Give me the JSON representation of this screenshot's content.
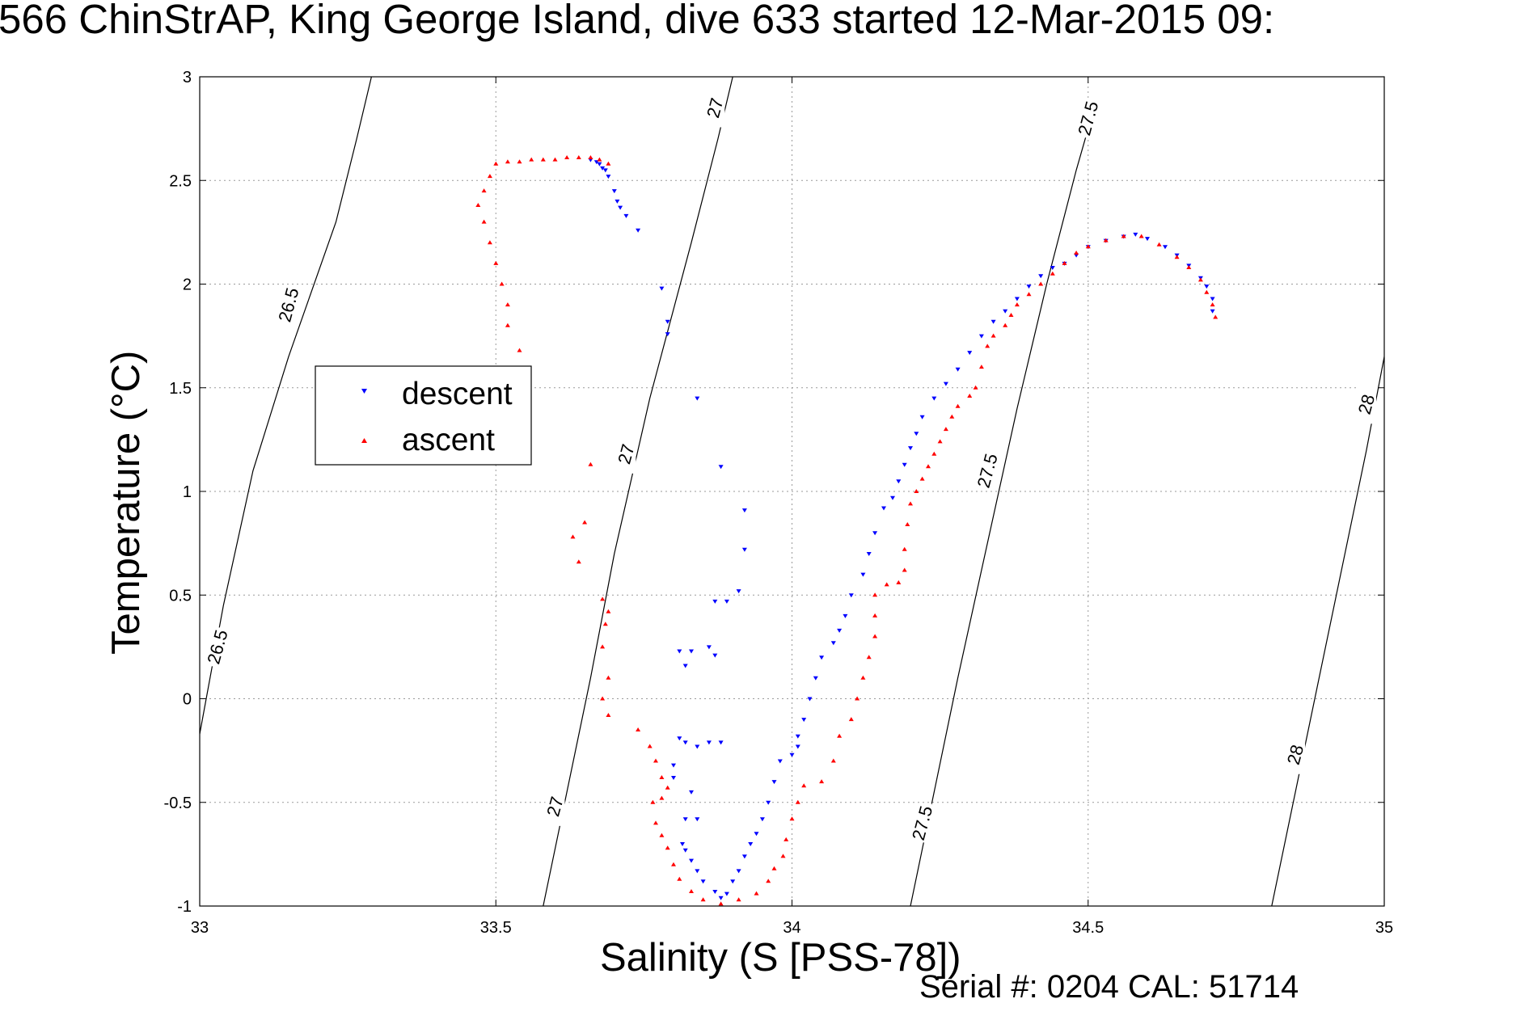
{
  "chart_data": {
    "type": "scatter",
    "title": "566 ChinStrAP, King George Island, dive 633 started 12-Mar-2015 09:",
    "xlabel": "Salinity (S [PSS-78])",
    "ylabel": "Temperature (°C)",
    "xlim": [
      33,
      35
    ],
    "ylim": [
      -1,
      3
    ],
    "xticks": [
      "33",
      "33.5",
      "34",
      "34.5",
      "35"
    ],
    "yticks": [
      "-1",
      "-0.5",
      "0",
      "0.5",
      "1",
      "1.5",
      "2",
      "2.5",
      "3"
    ],
    "grid": true,
    "legend_position": "left",
    "footer": "Serial #: 0204  CAL: 51714",
    "density_contours": [
      {
        "label": "26.5",
        "points": [
          [
            33.0,
            -0.17
          ],
          [
            33.04,
            0.45
          ],
          [
            33.09,
            1.1
          ],
          [
            33.15,
            1.65
          ],
          [
            33.23,
            2.3
          ],
          [
            33.265,
            2.7
          ],
          [
            33.29,
            3.0
          ]
        ]
      },
      {
        "label": "27",
        "points": [
          [
            33.58,
            -1.0
          ],
          [
            33.62,
            -0.45
          ],
          [
            33.66,
            0.1
          ],
          [
            33.7,
            0.7
          ],
          [
            33.76,
            1.45
          ],
          [
            33.83,
            2.2
          ],
          [
            33.875,
            2.7
          ],
          [
            33.9,
            3.0
          ]
        ]
      },
      {
        "label": "27.5",
        "points": [
          [
            34.2,
            -1.0
          ],
          [
            34.24,
            -0.45
          ],
          [
            34.28,
            0.1
          ],
          [
            34.33,
            0.75
          ],
          [
            34.38,
            1.4
          ],
          [
            34.43,
            2.0
          ],
          [
            34.48,
            2.55
          ],
          [
            34.5,
            2.75
          ]
        ]
      },
      {
        "label": "28",
        "points": [
          [
            34.81,
            -1.0
          ],
          [
            34.85,
            -0.45
          ],
          [
            34.89,
            0.1
          ],
          [
            34.93,
            0.65
          ],
          [
            34.97,
            1.2
          ],
          [
            35.0,
            1.65
          ]
        ]
      }
    ],
    "contour_label_positions": [
      {
        "label": "26.5",
        "at": [
          33.15,
          1.9
        ]
      },
      {
        "label": "26.5",
        "at": [
          33.03,
          0.25
        ]
      },
      {
        "label": "27",
        "at": [
          33.87,
          2.85
        ]
      },
      {
        "label": "27",
        "at": [
          33.72,
          1.18
        ]
      },
      {
        "label": "27",
        "at": [
          33.6,
          -0.52
        ]
      },
      {
        "label": "27.5",
        "at": [
          34.5,
          2.8
        ]
      },
      {
        "label": "27.5",
        "at": [
          34.33,
          1.1
        ]
      },
      {
        "label": "27.5",
        "at": [
          34.22,
          -0.6
        ]
      },
      {
        "label": "28",
        "at": [
          34.97,
          1.42
        ]
      },
      {
        "label": "28",
        "at": [
          34.85,
          -0.27
        ]
      }
    ],
    "series": [
      {
        "name": "descent",
        "color": "#0000ff",
        "marker": "triangle-down",
        "points": [
          [
            33.66,
            2.6
          ],
          [
            33.67,
            2.59
          ],
          [
            33.675,
            2.58
          ],
          [
            33.68,
            2.56
          ],
          [
            33.685,
            2.55
          ],
          [
            33.69,
            2.52
          ],
          [
            33.7,
            2.45
          ],
          [
            33.705,
            2.4
          ],
          [
            33.71,
            2.37
          ],
          [
            33.72,
            2.33
          ],
          [
            33.74,
            2.26
          ],
          [
            33.78,
            1.98
          ],
          [
            33.79,
            1.82
          ],
          [
            33.79,
            1.76
          ],
          [
            33.84,
            1.45
          ],
          [
            33.88,
            1.12
          ],
          [
            33.92,
            0.91
          ],
          [
            33.92,
            0.72
          ],
          [
            33.91,
            0.52
          ],
          [
            33.87,
            0.47
          ],
          [
            33.89,
            0.47
          ],
          [
            33.81,
            0.23
          ],
          [
            33.83,
            0.23
          ],
          [
            33.82,
            0.16
          ],
          [
            33.86,
            0.25
          ],
          [
            33.87,
            0.21
          ],
          [
            33.81,
            -0.19
          ],
          [
            33.82,
            -0.21
          ],
          [
            33.84,
            -0.23
          ],
          [
            33.86,
            -0.21
          ],
          [
            33.88,
            -0.21
          ],
          [
            33.8,
            -0.32
          ],
          [
            33.8,
            -0.38
          ],
          [
            33.83,
            -0.45
          ],
          [
            33.84,
            -0.58
          ],
          [
            33.82,
            -0.58
          ],
          [
            33.815,
            -0.7
          ],
          [
            33.82,
            -0.73
          ],
          [
            33.83,
            -0.78
          ],
          [
            33.84,
            -0.83
          ],
          [
            33.85,
            -0.88
          ],
          [
            33.87,
            -0.93
          ],
          [
            33.88,
            -0.96
          ],
          [
            33.89,
            -0.94
          ],
          [
            33.9,
            -0.88
          ],
          [
            33.91,
            -0.83
          ],
          [
            33.92,
            -0.76
          ],
          [
            33.93,
            -0.7
          ],
          [
            33.94,
            -0.65
          ],
          [
            33.95,
            -0.58
          ],
          [
            33.96,
            -0.5
          ],
          [
            33.97,
            -0.4
          ],
          [
            33.98,
            -0.3
          ],
          [
            34.0,
            -0.27
          ],
          [
            34.01,
            -0.23
          ],
          [
            34.01,
            -0.18
          ],
          [
            34.02,
            -0.1
          ],
          [
            34.03,
            0.0
          ],
          [
            34.04,
            0.1
          ],
          [
            34.05,
            0.2
          ],
          [
            34.07,
            0.27
          ],
          [
            34.08,
            0.33
          ],
          [
            34.09,
            0.4
          ],
          [
            34.1,
            0.5
          ],
          [
            34.12,
            0.6
          ],
          [
            34.13,
            0.7
          ],
          [
            34.14,
            0.8
          ],
          [
            34.155,
            0.92
          ],
          [
            34.17,
            0.97
          ],
          [
            34.18,
            1.05
          ],
          [
            34.19,
            1.13
          ],
          [
            34.2,
            1.21
          ],
          [
            34.21,
            1.28
          ],
          [
            34.22,
            1.36
          ],
          [
            34.24,
            1.45
          ],
          [
            34.26,
            1.52
          ],
          [
            34.28,
            1.59
          ],
          [
            34.3,
            1.67
          ],
          [
            34.32,
            1.75
          ],
          [
            34.34,
            1.82
          ],
          [
            34.36,
            1.87
          ],
          [
            34.38,
            1.93
          ],
          [
            34.4,
            1.99
          ],
          [
            34.42,
            2.04
          ],
          [
            34.44,
            2.08
          ],
          [
            34.46,
            2.1
          ],
          [
            34.48,
            2.14
          ],
          [
            34.5,
            2.18
          ],
          [
            34.53,
            2.21
          ],
          [
            34.56,
            2.23
          ],
          [
            34.58,
            2.24
          ],
          [
            34.6,
            2.22
          ],
          [
            34.63,
            2.18
          ],
          [
            34.65,
            2.14
          ],
          [
            34.67,
            2.09
          ],
          [
            34.69,
            2.03
          ],
          [
            34.7,
            1.99
          ],
          [
            34.71,
            1.93
          ],
          [
            34.71,
            1.87
          ]
        ]
      },
      {
        "name": "ascent",
        "color": "#ff0000",
        "marker": "triangle-up",
        "points": [
          [
            33.69,
            2.58
          ],
          [
            33.675,
            2.6
          ],
          [
            33.66,
            2.61
          ],
          [
            33.64,
            2.61
          ],
          [
            33.62,
            2.61
          ],
          [
            33.6,
            2.6
          ],
          [
            33.58,
            2.6
          ],
          [
            33.56,
            2.6
          ],
          [
            33.54,
            2.59
          ],
          [
            33.52,
            2.59
          ],
          [
            33.5,
            2.58
          ],
          [
            33.49,
            2.52
          ],
          [
            33.48,
            2.45
          ],
          [
            33.47,
            2.38
          ],
          [
            33.48,
            2.3
          ],
          [
            33.49,
            2.2
          ],
          [
            33.5,
            2.1
          ],
          [
            33.51,
            2.0
          ],
          [
            33.52,
            1.9
          ],
          [
            33.52,
            1.8
          ],
          [
            33.54,
            1.68
          ],
          [
            33.66,
            1.13
          ],
          [
            33.65,
            0.85
          ],
          [
            33.63,
            0.78
          ],
          [
            33.64,
            0.66
          ],
          [
            33.68,
            0.48
          ],
          [
            33.69,
            0.42
          ],
          [
            33.685,
            0.36
          ],
          [
            33.68,
            0.25
          ],
          [
            33.69,
            0.1
          ],
          [
            33.68,
            0.0
          ],
          [
            33.69,
            -0.08
          ],
          [
            33.74,
            -0.15
          ],
          [
            33.76,
            -0.23
          ],
          [
            33.77,
            -0.3
          ],
          [
            33.78,
            -0.38
          ],
          [
            33.79,
            -0.43
          ],
          [
            33.78,
            -0.48
          ],
          [
            33.765,
            -0.5
          ],
          [
            33.77,
            -0.6
          ],
          [
            33.78,
            -0.66
          ],
          [
            33.79,
            -0.72
          ],
          [
            33.8,
            -0.8
          ],
          [
            33.81,
            -0.87
          ],
          [
            33.83,
            -0.93
          ],
          [
            33.85,
            -0.97
          ],
          [
            33.88,
            -0.99
          ],
          [
            33.91,
            -0.97
          ],
          [
            33.94,
            -0.94
          ],
          [
            33.96,
            -0.88
          ],
          [
            33.97,
            -0.82
          ],
          [
            33.985,
            -0.76
          ],
          [
            33.99,
            -0.68
          ],
          [
            34.0,
            -0.58
          ],
          [
            34.01,
            -0.5
          ],
          [
            34.02,
            -0.42
          ],
          [
            34.05,
            -0.4
          ],
          [
            34.07,
            -0.3
          ],
          [
            34.08,
            -0.18
          ],
          [
            34.1,
            -0.1
          ],
          [
            34.11,
            0.0
          ],
          [
            34.12,
            0.1
          ],
          [
            34.13,
            0.2
          ],
          [
            34.14,
            0.3
          ],
          [
            34.14,
            0.4
          ],
          [
            34.14,
            0.5
          ],
          [
            34.16,
            0.55
          ],
          [
            34.18,
            0.56
          ],
          [
            34.19,
            0.62
          ],
          [
            34.19,
            0.72
          ],
          [
            34.195,
            0.84
          ],
          [
            34.2,
            0.94
          ],
          [
            34.21,
            1.0
          ],
          [
            34.22,
            1.06
          ],
          [
            34.23,
            1.12
          ],
          [
            34.24,
            1.18
          ],
          [
            34.25,
            1.24
          ],
          [
            34.26,
            1.3
          ],
          [
            34.27,
            1.36
          ],
          [
            34.28,
            1.41
          ],
          [
            34.3,
            1.46
          ],
          [
            34.31,
            1.5
          ],
          [
            34.32,
            1.6
          ],
          [
            34.33,
            1.7
          ],
          [
            34.34,
            1.75
          ],
          [
            34.36,
            1.8
          ],
          [
            34.37,
            1.85
          ],
          [
            34.38,
            1.9
          ],
          [
            34.4,
            1.95
          ],
          [
            34.42,
            2.0
          ],
          [
            34.44,
            2.05
          ],
          [
            34.46,
            2.1
          ],
          [
            34.48,
            2.15
          ],
          [
            34.5,
            2.18
          ],
          [
            34.53,
            2.21
          ],
          [
            34.56,
            2.23
          ],
          [
            34.59,
            2.23
          ],
          [
            34.62,
            2.19
          ],
          [
            34.65,
            2.13
          ],
          [
            34.67,
            2.08
          ],
          [
            34.69,
            2.02
          ],
          [
            34.7,
            1.96
          ],
          [
            34.71,
            1.9
          ],
          [
            34.715,
            1.84
          ]
        ]
      }
    ]
  }
}
